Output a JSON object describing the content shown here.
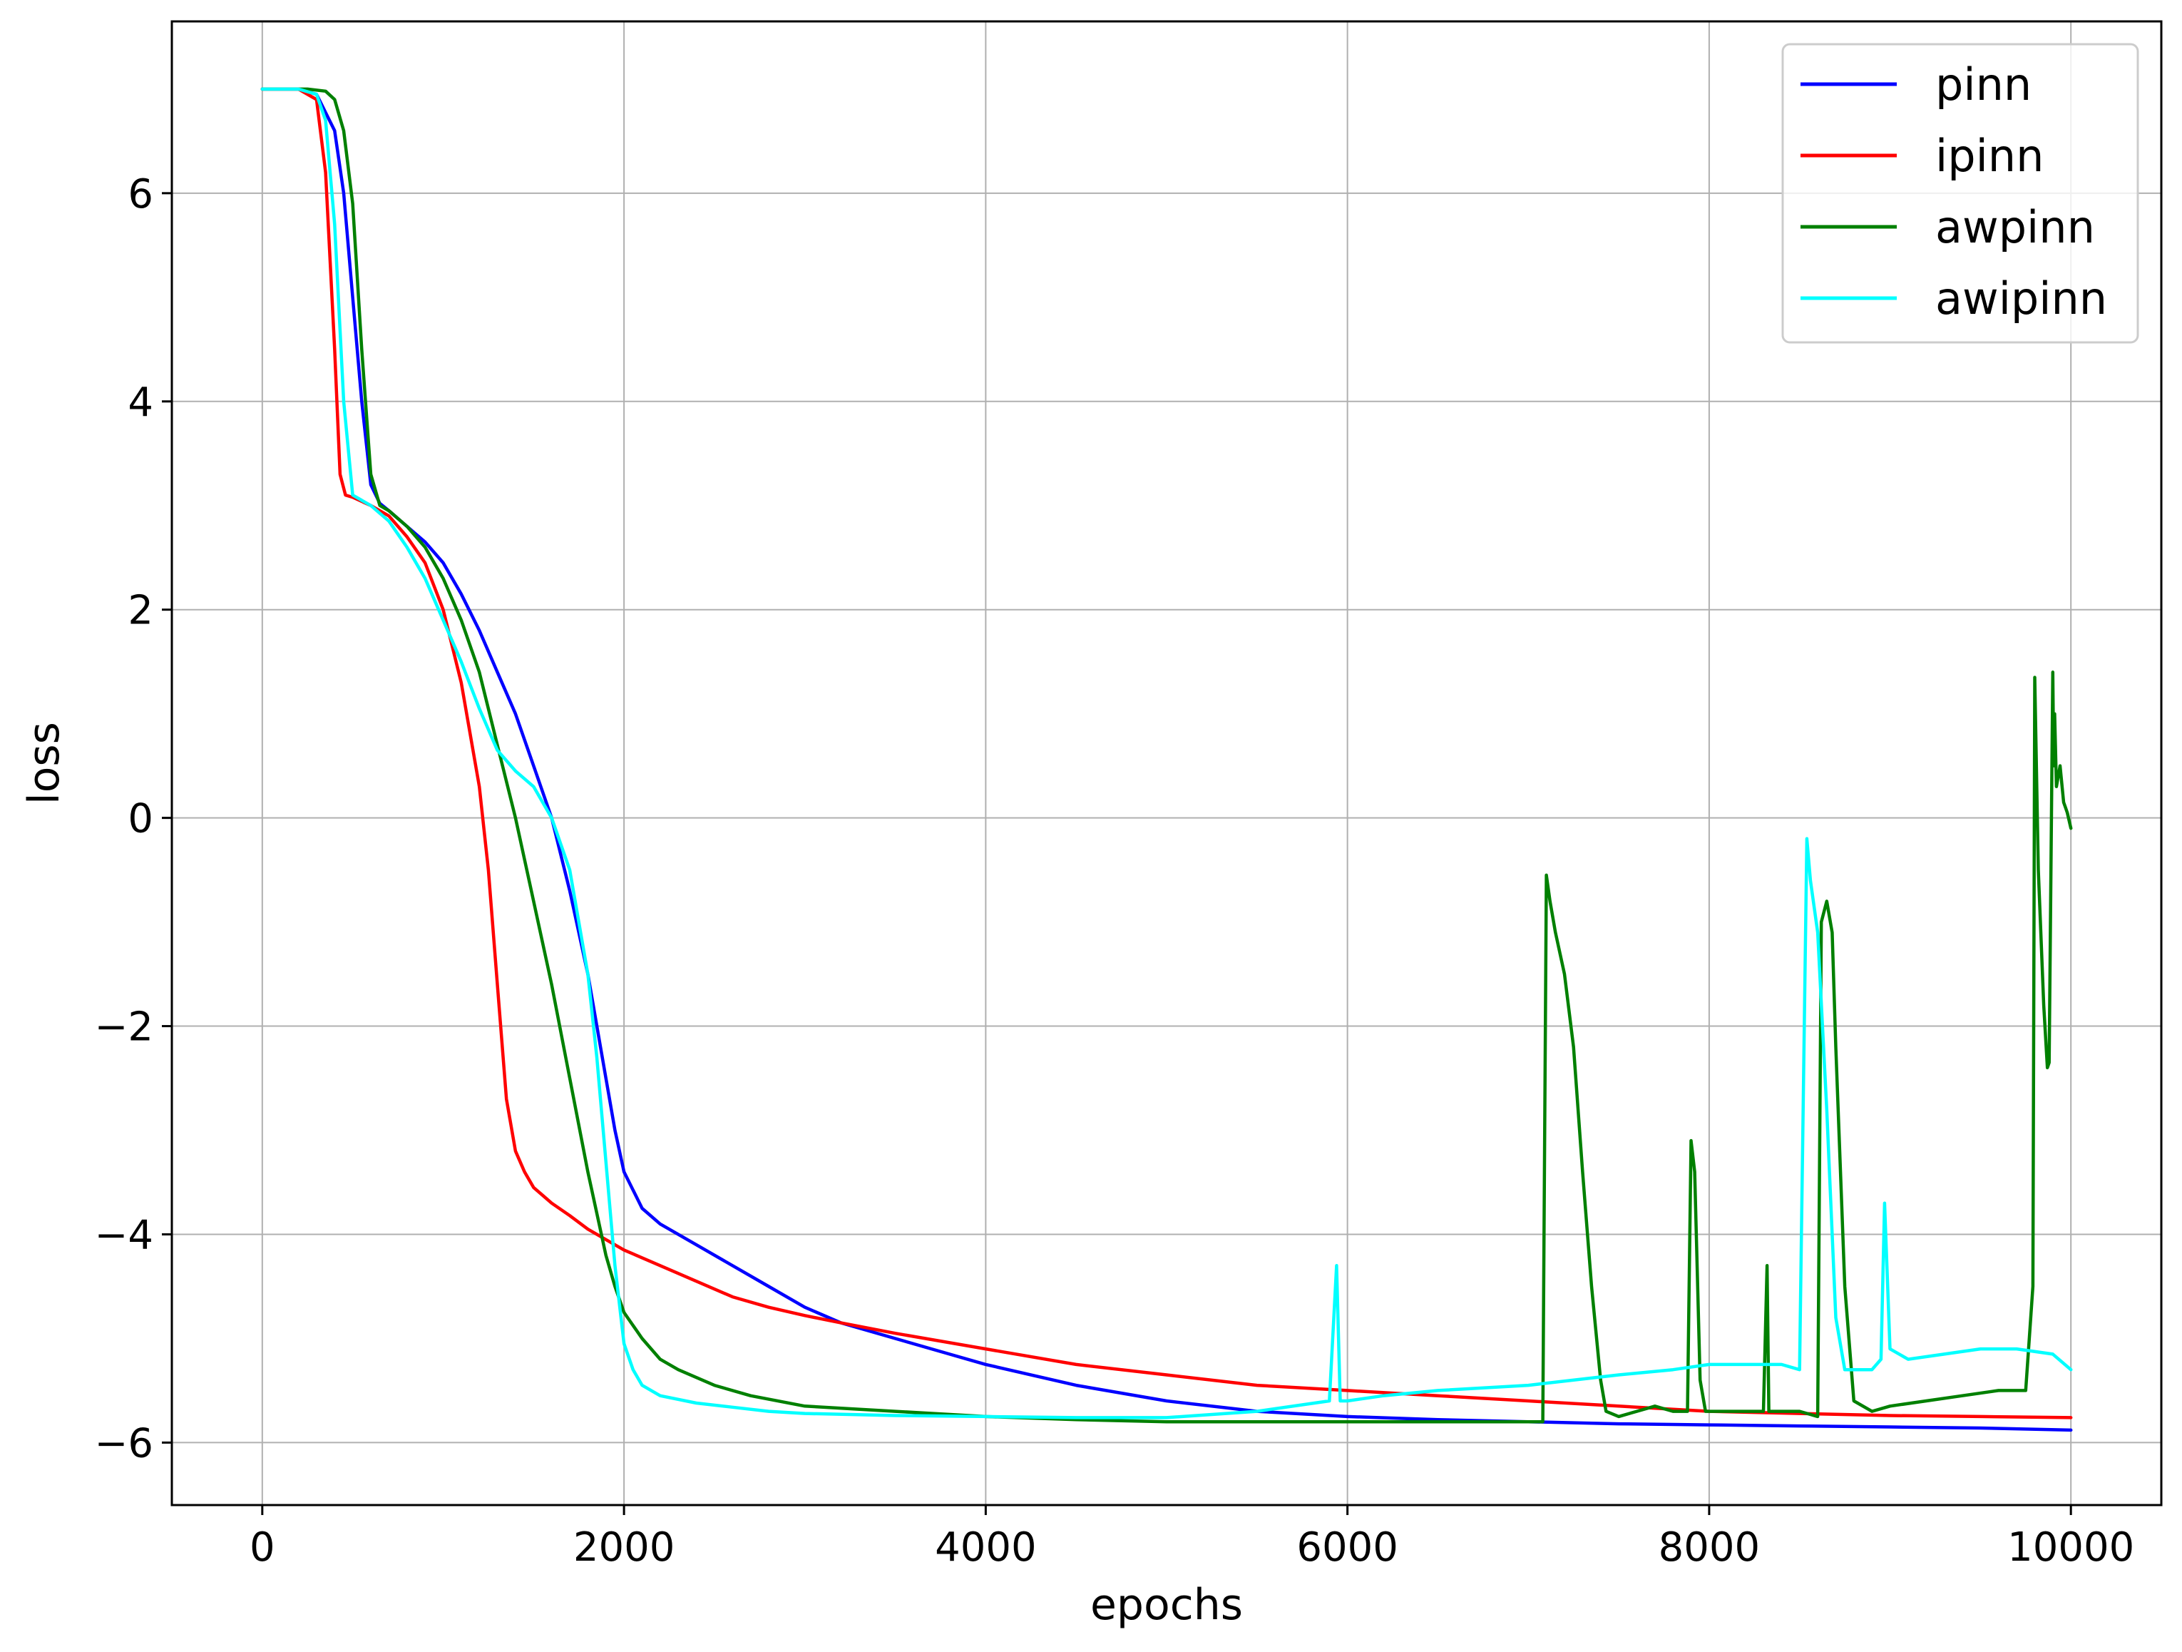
{
  "chart_data": {
    "type": "line",
    "title": "",
    "xlabel": "epochs",
    "ylabel": "loss",
    "xlim": [
      -500,
      10500
    ],
    "ylim": [
      -6.6,
      7.65
    ],
    "xticks": [
      0,
      2000,
      4000,
      6000,
      8000,
      10000
    ],
    "yticks": [
      -6,
      -4,
      -2,
      0,
      2,
      4,
      6
    ],
    "xtick_labels": [
      "0",
      "2000",
      "4000",
      "6000",
      "8000",
      "10000"
    ],
    "ytick_labels": [
      "−6",
      "−4",
      "−2",
      "0",
      "2",
      "4",
      "6"
    ],
    "grid": true,
    "legend_position": "top-right",
    "series": [
      {
        "name": "pinn",
        "color": "#0000ff",
        "x": [
          0,
          200,
          300,
          400,
          450,
          500,
          550,
          600,
          650,
          700,
          800,
          900,
          1000,
          1100,
          1200,
          1300,
          1400,
          1500,
          1600,
          1700,
          1800,
          1900,
          1950,
          2000,
          2100,
          2200,
          2400,
          2600,
          2800,
          3000,
          3200,
          3500,
          3800,
          4000,
          4500,
          5000,
          5500,
          6000,
          6500,
          7000,
          7500,
          8000,
          8500,
          9000,
          9500,
          10000
        ],
        "y": [
          7.0,
          7.0,
          6.95,
          6.6,
          6.0,
          5.0,
          4.0,
          3.2,
          3.02,
          2.95,
          2.8,
          2.65,
          2.45,
          2.15,
          1.8,
          1.4,
          1.0,
          0.5,
          0.0,
          -0.7,
          -1.5,
          -2.5,
          -3.0,
          -3.4,
          -3.75,
          -3.9,
          -4.1,
          -4.3,
          -4.5,
          -4.7,
          -4.85,
          -5.0,
          -5.15,
          -5.25,
          -5.45,
          -5.6,
          -5.7,
          -5.75,
          -5.78,
          -5.8,
          -5.82,
          -5.83,
          -5.84,
          -5.85,
          -5.86,
          -5.88
        ]
      },
      {
        "name": "ipinn",
        "color": "#ff0000",
        "x": [
          0,
          200,
          300,
          350,
          400,
          430,
          460,
          500,
          600,
          700,
          800,
          900,
          1000,
          1100,
          1200,
          1250,
          1300,
          1350,
          1400,
          1450,
          1500,
          1600,
          1700,
          1800,
          1900,
          2000,
          2200,
          2400,
          2600,
          2800,
          3000,
          3200,
          3500,
          4000,
          4500,
          5000,
          5500,
          6000,
          6500,
          7000,
          7500,
          8000,
          8500,
          9000,
          9500,
          10000
        ],
        "y": [
          7.0,
          7.0,
          6.9,
          6.2,
          4.5,
          3.3,
          3.1,
          3.08,
          3.0,
          2.9,
          2.7,
          2.45,
          2.0,
          1.3,
          0.3,
          -0.5,
          -1.6,
          -2.7,
          -3.2,
          -3.4,
          -3.55,
          -3.7,
          -3.82,
          -3.95,
          -4.05,
          -4.15,
          -4.3,
          -4.45,
          -4.6,
          -4.7,
          -4.78,
          -4.85,
          -4.95,
          -5.1,
          -5.25,
          -5.35,
          -5.45,
          -5.5,
          -5.55,
          -5.6,
          -5.65,
          -5.7,
          -5.72,
          -5.74,
          -5.75,
          -5.76
        ]
      },
      {
        "name": "awpinn",
        "color": "#008000",
        "x": [
          0,
          250,
          350,
          400,
          450,
          500,
          550,
          600,
          650,
          700,
          800,
          900,
          1000,
          1100,
          1200,
          1300,
          1400,
          1500,
          1600,
          1700,
          1800,
          1900,
          1950,
          2000,
          2100,
          2200,
          2300,
          2500,
          2700,
          3000,
          3500,
          4000,
          4500,
          5000,
          5500,
          6000,
          6500,
          7000,
          7080,
          7100,
          7120,
          7150,
          7200,
          7250,
          7300,
          7350,
          7400,
          7430,
          7500,
          7600,
          7700,
          7800,
          7880,
          7900,
          7920,
          7950,
          7980,
          8000,
          8100,
          8200,
          8300,
          8320,
          8330,
          8350,
          8400,
          8500,
          8600,
          8620,
          8650,
          8680,
          8700,
          8750,
          8800,
          8900,
          9000,
          9200,
          9400,
          9600,
          9750,
          9790,
          9800,
          9820,
          9850,
          9870,
          9880,
          9900,
          9905,
          9910,
          9920,
          9940,
          9960,
          9970,
          9980,
          10000
        ],
        "y": [
          7.0,
          7.0,
          6.98,
          6.9,
          6.6,
          5.9,
          4.5,
          3.3,
          3.0,
          2.95,
          2.8,
          2.6,
          2.3,
          1.9,
          1.4,
          0.7,
          0.0,
          -0.8,
          -1.6,
          -2.5,
          -3.4,
          -4.2,
          -4.5,
          -4.75,
          -5.0,
          -5.2,
          -5.3,
          -5.45,
          -5.55,
          -5.65,
          -5.7,
          -5.75,
          -5.78,
          -5.8,
          -5.8,
          -5.8,
          -5.8,
          -5.8,
          -5.8,
          -0.55,
          -0.8,
          -1.1,
          -1.5,
          -2.2,
          -3.4,
          -4.5,
          -5.4,
          -5.7,
          -5.75,
          -5.7,
          -5.65,
          -5.7,
          -5.7,
          -3.1,
          -3.4,
          -5.4,
          -5.7,
          -5.7,
          -5.7,
          -5.7,
          -5.7,
          -4.3,
          -5.7,
          -5.7,
          -5.7,
          -5.7,
          -5.75,
          -1.0,
          -0.8,
          -1.1,
          -2.2,
          -4.5,
          -5.6,
          -5.7,
          -5.65,
          -5.6,
          -5.55,
          -5.5,
          -5.5,
          -4.5,
          1.35,
          -0.5,
          -1.8,
          -2.4,
          -2.35,
          1.4,
          0.5,
          1.0,
          0.3,
          0.5,
          0.15,
          0.1,
          0.05,
          -0.1
        ]
      },
      {
        "name": "awipinn",
        "color": "#00ffff",
        "x": [
          0,
          200,
          300,
          350,
          400,
          450,
          500,
          600,
          700,
          800,
          900,
          1000,
          1100,
          1200,
          1300,
          1400,
          1500,
          1600,
          1700,
          1800,
          1850,
          1900,
          1950,
          2000,
          2050,
          2100,
          2200,
          2400,
          2600,
          2800,
          3000,
          3500,
          4000,
          4500,
          5000,
          5500,
          5900,
          5940,
          5960,
          6000,
          6200,
          6500,
          7000,
          7500,
          7800,
          8000,
          8200,
          8400,
          8500,
          8540,
          8560,
          8600,
          8650,
          8700,
          8750,
          8800,
          8850,
          8900,
          8950,
          8970,
          9000,
          9100,
          9300,
          9500,
          9700,
          9900,
          10000
        ],
        "y": [
          7.0,
          7.0,
          6.95,
          6.7,
          5.7,
          4.0,
          3.1,
          3.0,
          2.85,
          2.6,
          2.3,
          1.9,
          1.5,
          1.05,
          0.65,
          0.45,
          0.3,
          0.0,
          -0.5,
          -1.5,
          -2.3,
          -3.3,
          -4.3,
          -5.05,
          -5.3,
          -5.45,
          -5.55,
          -5.62,
          -5.66,
          -5.7,
          -5.72,
          -5.74,
          -5.75,
          -5.76,
          -5.76,
          -5.7,
          -5.6,
          -4.3,
          -5.6,
          -5.6,
          -5.55,
          -5.5,
          -5.45,
          -5.35,
          -5.3,
          -5.25,
          -5.25,
          -5.25,
          -5.3,
          -0.2,
          -0.6,
          -1.1,
          -2.8,
          -4.8,
          -5.3,
          -5.3,
          -5.3,
          -5.3,
          -5.2,
          -3.7,
          -5.1,
          -5.2,
          -5.15,
          -5.1,
          -5.1,
          -5.15,
          -5.3
        ]
      }
    ]
  }
}
